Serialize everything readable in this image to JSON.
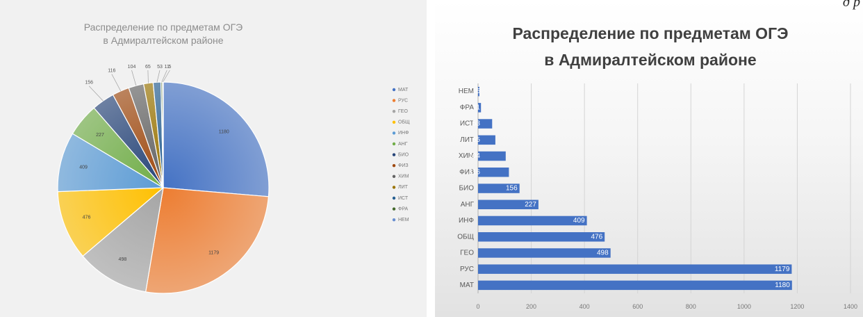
{
  "corner_text": "д р",
  "chart_data": [
    {
      "type": "pie",
      "title": "Распределение по предметам ОГЭ\nв Адмиралтейском районе",
      "categories": [
        "МАТ",
        "РУС",
        "ГЕО",
        "ОБЩ",
        "ИНФ",
        "АНГ",
        "БИО",
        "ФИЗ",
        "ХИМ",
        "ЛИТ",
        "ИСТ",
        "ФРА",
        "НЕМ"
      ],
      "values": [
        1180,
        1179,
        498,
        476,
        409,
        227,
        156,
        116,
        104,
        65,
        53,
        11,
        5
      ],
      "colors": [
        "#4472c4",
        "#ed7d31",
        "#a5a5a5",
        "#ffc000",
        "#5b9bd5",
        "#70ad47",
        "#264478",
        "#9e480e",
        "#636363",
        "#997300",
        "#255e91",
        "#43682b",
        "#698ed0"
      ],
      "legend": "right"
    },
    {
      "type": "bar",
      "orientation": "horizontal",
      "title": "Распределение по предметам ОГЭ\nв Адмиралтейском районе",
      "categories": [
        "НЕМ",
        "ФРА",
        "ИСТ",
        "ЛИТ",
        "ХИМ",
        "ФИЗ",
        "БИО",
        "АНГ",
        "ИНФ",
        "ОБЩ",
        "ГЕО",
        "РУС",
        "МАТ"
      ],
      "values": [
        5,
        11,
        53,
        65,
        104,
        116,
        156,
        227,
        409,
        476,
        498,
        1179,
        1180
      ],
      "xlim": [
        0,
        1400
      ],
      "xticks": [
        0,
        200,
        400,
        600,
        800,
        1000,
        1200,
        1400
      ],
      "bar_color": "#4472c4",
      "grid": true
    }
  ]
}
